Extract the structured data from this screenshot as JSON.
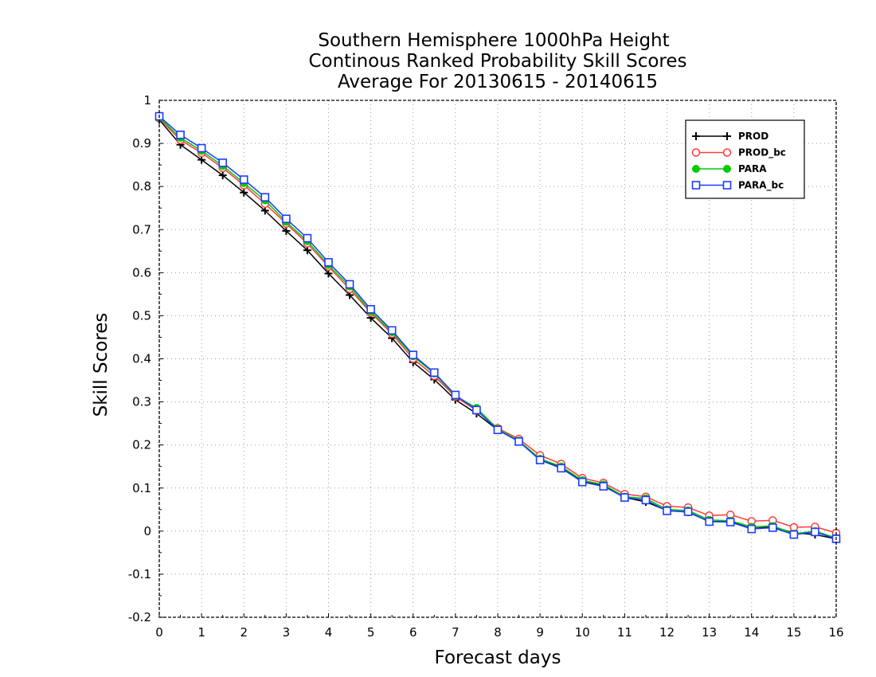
{
  "chart_data": {
    "type": "line",
    "title": [
      "Southern Hemisphere 1000hPa Height",
      "Continous Ranked Probability Skill Scores",
      "Average For 20130615 - 20140615"
    ],
    "xlabel": "Forecast days",
    "ylabel": "Skill Scores",
    "xlim": [
      0,
      16
    ],
    "ylim": [
      -0.2,
      1
    ],
    "xticks": [
      0,
      1,
      2,
      3,
      4,
      5,
      6,
      7,
      8,
      9,
      10,
      11,
      12,
      13,
      14,
      15,
      16
    ],
    "yticks": [
      -0.2,
      -0.1,
      0,
      0.1,
      0.2,
      0.3,
      0.4,
      0.5,
      0.6,
      0.7,
      0.8,
      0.9,
      1
    ],
    "ytick_labels": [
      "-0.2",
      "-0.1",
      "0",
      "0.1",
      "0.2",
      "0.3",
      "0.4",
      "0.5",
      "0.6",
      "0.7",
      "0.8",
      "0.9",
      "1"
    ],
    "grid": true,
    "legend_position": "top-right",
    "x": [
      0,
      0.5,
      1,
      1.5,
      2,
      2.5,
      3,
      3.5,
      4,
      4.5,
      5,
      5.5,
      6,
      6.5,
      7,
      7.5,
      8,
      8.5,
      9,
      9.5,
      10,
      10.5,
      11,
      11.5,
      12,
      12.5,
      13,
      13.5,
      14,
      14.5,
      15,
      15.5,
      16
    ],
    "series": [
      {
        "name": "PROD",
        "color": "#000000",
        "marker": "plus",
        "values": [
          0.955,
          0.897,
          0.862,
          0.826,
          0.786,
          0.744,
          0.697,
          0.652,
          0.598,
          0.548,
          0.495,
          0.448,
          0.392,
          0.352,
          0.305,
          0.273,
          0.235,
          0.208,
          0.168,
          0.148,
          0.115,
          0.105,
          0.078,
          0.068,
          0.048,
          0.044,
          0.022,
          0.022,
          0.006,
          0.01,
          -0.004,
          -0.008,
          -0.018
        ]
      },
      {
        "name": "PROD_bc",
        "color": "#ff3b3b",
        "marker": "circle-open",
        "values": [
          0.958,
          0.908,
          0.878,
          0.843,
          0.803,
          0.76,
          0.714,
          0.668,
          0.614,
          0.562,
          0.507,
          0.458,
          0.4,
          0.36,
          0.312,
          0.28,
          0.239,
          0.214,
          0.176,
          0.156,
          0.123,
          0.112,
          0.086,
          0.08,
          0.058,
          0.055,
          0.036,
          0.038,
          0.023,
          0.025,
          0.009,
          0.01,
          -0.004
        ]
      },
      {
        "name": "PARA",
        "color": "#00cc00",
        "marker": "circle-filled",
        "values": [
          0.96,
          0.913,
          0.883,
          0.848,
          0.808,
          0.768,
          0.718,
          0.673,
          0.618,
          0.568,
          0.51,
          0.462,
          0.406,
          0.366,
          0.314,
          0.286,
          0.237,
          0.21,
          0.168,
          0.15,
          0.118,
          0.108,
          0.08,
          0.076,
          0.05,
          0.048,
          0.026,
          0.024,
          0.01,
          0.012,
          -0.006,
          0.0,
          -0.016
        ]
      },
      {
        "name": "PARA_bc",
        "color": "#1a3cff",
        "marker": "square-open",
        "values": [
          0.963,
          0.92,
          0.889,
          0.855,
          0.816,
          0.775,
          0.725,
          0.68,
          0.624,
          0.573,
          0.515,
          0.466,
          0.409,
          0.368,
          0.316,
          0.281,
          0.235,
          0.208,
          0.165,
          0.146,
          0.114,
          0.104,
          0.078,
          0.072,
          0.047,
          0.045,
          0.022,
          0.021,
          0.005,
          0.008,
          -0.008,
          -0.002,
          -0.018
        ]
      }
    ]
  }
}
